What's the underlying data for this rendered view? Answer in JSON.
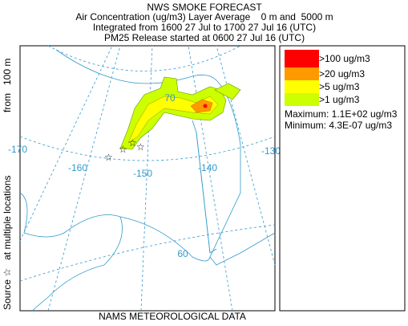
{
  "header": {
    "title": "NWS SMOKE FORECAST",
    "lines": [
      "Air Concentration (ug/m3) Layer Average    0 m and  5000 m",
      "Integrated from 1600 27 Jul to 1700 27 Jul 16 (UTC)",
      "PM25 Release started at 0600 27 Jul 16 (UTC)"
    ]
  },
  "side_labels": {
    "source": "Source ☆   at multiple locations",
    "height": "from   100 m"
  },
  "footer": "NAMS METEOROLOGICAL DATA",
  "map_labels": {
    "lon": [
      "-170",
      "-160",
      "-150",
      "-140",
      "-130"
    ],
    "lat": [
      "60",
      "70"
    ]
  },
  "legend": {
    "entries": [
      {
        "label": ">100 ug/m3",
        "color": "#ff0000"
      },
      {
        "label": ">20 ug/m3",
        "color": "#ff9900"
      },
      {
        "label": ">5 ug/m3",
        "color": "#ffff00"
      },
      {
        "label": ">1 ug/m3",
        "color": "#ccff00"
      }
    ],
    "maximum": "Maximum: 1.1E+02 ug/m3",
    "minimum": "Minimum: 4.3E-07 ug/m3"
  }
}
